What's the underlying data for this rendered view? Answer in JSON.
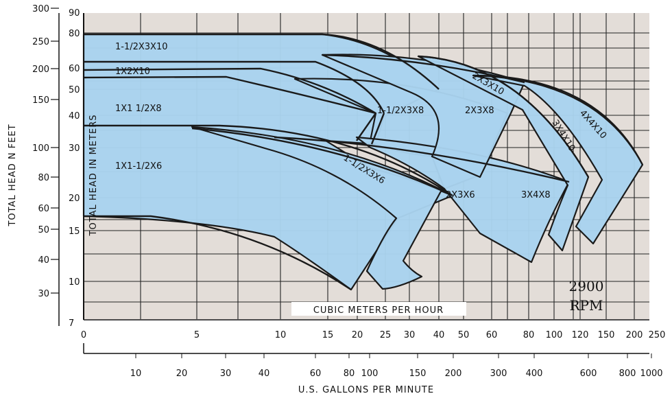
{
  "chart_data": {
    "type": "area",
    "title": "",
    "speed": {
      "value": "2900",
      "unit": "RPM"
    },
    "plot_background": "#e3ddd8",
    "band_color": "#a9d3ee",
    "band_stroke": "#1a1a1a",
    "axes": {
      "left_feet": {
        "label": "TOTAL HEAD  N FEET",
        "ticks": [
          "300",
          "250",
          "200",
          "150",
          "100",
          "80",
          "60",
          "50",
          "40",
          "30"
        ]
      },
      "left_meters": {
        "label": "TOTAL HEAD IN METERS",
        "ticks": [
          "90",
          "80",
          "60",
          "50",
          "40",
          "30",
          "20",
          "15",
          "10",
          "7"
        ]
      },
      "top_cmh": {
        "label": "CUBIC METERS PER HOUR",
        "ticks": [
          "0",
          "5",
          "10",
          "15",
          "20",
          "25",
          "30",
          "40",
          "50",
          "60",
          "80",
          "100",
          "120",
          "150",
          "200",
          "250"
        ]
      },
      "bottom_gpm": {
        "label": "U.S. GALLONS PER MINUTE",
        "ticks": [
          "10",
          "20",
          "30",
          "40",
          "60",
          "80",
          "100",
          "150",
          "200",
          "300",
          "400",
          "600",
          "800",
          "1000"
        ]
      },
      "x_range_cmh": [
        0,
        250
      ],
      "y_range_m": [
        7,
        90
      ],
      "x_scale": "log",
      "y_scale": "log",
      "grid": true
    },
    "series": [
      {
        "name": "1-1/2X3X10",
        "head_m_at_shutoff": 80
      },
      {
        "name": "1X2X10",
        "head_m_at_shutoff": 62
      },
      {
        "name": "1X1  1/2X8",
        "head_m_at_shutoff": 55
      },
      {
        "name": "1X1-1/2X6",
        "head_m_at_shutoff": 35
      },
      {
        "name": "1-1/2X3X8",
        "head_m_at_shutoff": 62
      },
      {
        "name": "2X3X10",
        "head_m_at_shutoff": 80
      },
      {
        "name": "2X3X8",
        "head_m_at_shutoff": 55
      },
      {
        "name": "1-1/2X3X6",
        "head_m_at_shutoff": 35
      },
      {
        "name": "2X3X6",
        "head_m_at_shutoff": 35
      },
      {
        "name": "3X4X8",
        "head_m_at_shutoff": 35
      },
      {
        "name": "3X4X10",
        "head_m_at_shutoff": 62
      },
      {
        "name": "4X4X10",
        "head_m_at_shutoff": 62
      }
    ]
  }
}
